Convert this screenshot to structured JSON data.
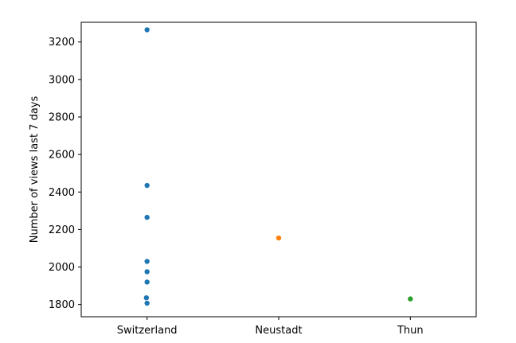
{
  "chart_data": {
    "type": "scatter",
    "title": "",
    "xlabel": "",
    "ylabel": "Number of views last 7 days",
    "categories": [
      "Switzerland",
      "Neustadt",
      "Thun"
    ],
    "ylim": [
      1735,
      3305
    ],
    "yticks": [
      1800,
      2000,
      2200,
      2400,
      2600,
      2800,
      3000,
      3200
    ],
    "grid": false,
    "legend": "none",
    "series": [
      {
        "category": "Switzerland",
        "color": "#1f77b4",
        "points": [
          {
            "x": 0.0,
            "y": 3265
          },
          {
            "x": 0.0,
            "y": 2435
          },
          {
            "x": 0.0,
            "y": 2265
          },
          {
            "x": 0.0,
            "y": 2030
          },
          {
            "x": 0.0,
            "y": 1975
          },
          {
            "x": 0.0,
            "y": 1920
          },
          {
            "x": -0.005,
            "y": 1836
          },
          {
            "x": 0.0,
            "y": 1807
          }
        ]
      },
      {
        "category": "Neustadt",
        "color": "#ff7f0e",
        "points": [
          {
            "x": 1.0,
            "y": 2155
          }
        ]
      },
      {
        "category": "Thun",
        "color": "#2ca02c",
        "points": [
          {
            "x": 2.0,
            "y": 1830
          }
        ]
      }
    ]
  }
}
